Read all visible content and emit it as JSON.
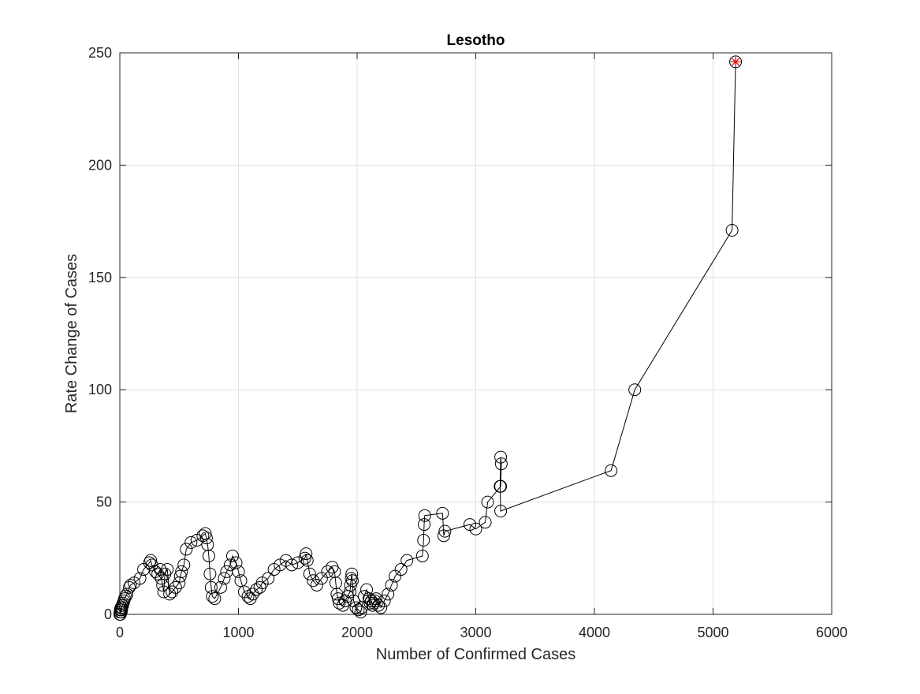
{
  "chart_data": {
    "type": "scatter",
    "title": "Lesotho",
    "xlabel": "Number of Confirmed Cases",
    "ylabel": "Rate Change of Cases",
    "xlim": [
      0,
      6000
    ],
    "ylim": [
      0,
      250
    ],
    "xticks": [
      "0",
      "1000",
      "2000",
      "3000",
      "4000",
      "5000",
      "6000"
    ],
    "yticks": [
      "0",
      "50",
      "100",
      "150",
      "200",
      "250"
    ],
    "grid": true,
    "line_color": "#000000",
    "marker": "circle",
    "last_point_marker": "asterisk",
    "last_point_color": "#e00000",
    "series": [
      {
        "x": [
          0,
          2,
          4,
          5,
          8,
          10,
          12,
          15,
          17,
          20,
          24,
          28,
          35,
          40,
          50,
          60,
          80,
          90,
          120,
          170,
          200,
          250,
          260,
          270,
          300,
          320,
          340,
          350,
          360,
          370,
          380,
          400,
          420,
          440,
          470,
          500,
          510,
          520,
          540,
          560,
          600,
          650,
          700,
          720,
          730,
          740,
          750,
          760,
          770,
          780,
          800,
          850,
          880,
          900,
          930,
          950,
          980,
          1000,
          1020,
          1050,
          1080,
          1100,
          1120,
          1150,
          1180,
          1200,
          1250,
          1300,
          1350,
          1400,
          1450,
          1500,
          1560,
          1570,
          1580,
          1600,
          1630,
          1660,
          1700,
          1750,
          1790,
          1810,
          1820,
          1830,
          1840,
          1850,
          1880,
          1900,
          1920,
          1940,
          1945,
          1950,
          1955,
          1960,
          1970,
          1990,
          2010,
          2030,
          2040,
          2060,
          2080,
          2100,
          2110,
          2120,
          2130,
          2140,
          2150,
          2160,
          2180,
          2200,
          2230,
          2260,
          2290,
          2320,
          2370,
          2420,
          2550,
          2560,
          2565,
          2570,
          2720,
          2730,
          2740,
          2950,
          3000,
          3080,
          3100,
          3210,
          3215,
          3210,
          3205,
          3210,
          4140,
          4340,
          5160,
          5190
        ],
        "y": [
          0,
          1,
          2,
          0,
          2,
          3,
          1,
          2,
          3,
          4,
          4,
          5,
          6,
          7,
          8,
          9,
          12,
          13,
          14,
          16,
          20,
          23,
          24,
          22,
          19,
          18,
          20,
          16,
          13,
          10,
          18,
          20,
          9,
          10,
          12,
          14,
          17,
          19,
          22,
          29,
          32,
          33,
          35,
          36,
          34,
          31,
          26,
          18,
          12,
          8,
          7,
          12,
          16,
          19,
          22,
          26,
          23,
          19,
          15,
          10,
          8,
          7,
          9,
          11,
          12,
          14,
          16,
          20,
          22,
          24,
          22,
          23,
          25,
          27,
          24,
          18,
          15,
          13,
          16,
          19,
          21,
          19,
          14,
          9,
          7,
          5,
          4,
          6,
          8,
          10,
          13,
          16,
          18,
          15,
          6,
          3,
          2,
          1,
          3,
          8,
          11,
          7,
          5,
          6,
          4,
          5,
          6,
          7,
          4,
          3,
          6,
          9,
          13,
          17,
          20,
          24,
          26,
          33,
          40,
          44,
          45,
          35,
          37,
          40,
          38,
          41,
          50,
          57,
          67,
          70,
          57,
          46,
          64,
          100,
          171,
          246
        ]
      }
    ]
  }
}
